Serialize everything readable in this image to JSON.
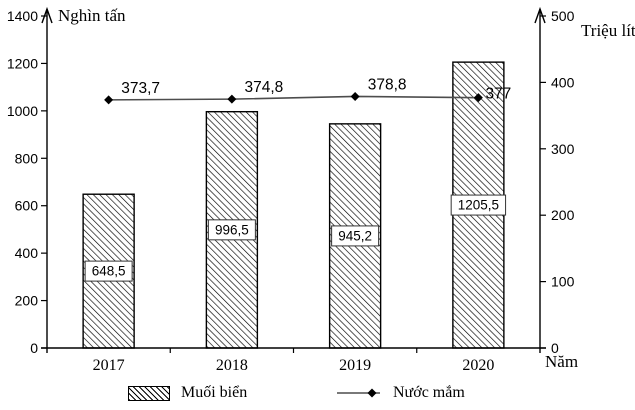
{
  "chart_data": {
    "type": "bar-line-combo",
    "categories": [
      "2017",
      "2018",
      "2019",
      "2020"
    ],
    "series": [
      {
        "name": "Muối biển",
        "type": "bar",
        "axis": "left",
        "values": [
          648.5,
          996.5,
          945.2,
          1205.5
        ],
        "labels": [
          "648,5",
          "996,5",
          "945,2",
          "1205,5"
        ]
      },
      {
        "name": "Nước mắm",
        "type": "line",
        "axis": "right",
        "values": [
          373.7,
          374.8,
          378.8,
          377
        ],
        "labels": [
          "373,7",
          "374,8",
          "378,8",
          "377"
        ]
      }
    ],
    "left_axis": {
      "title": "Nghìn tấn",
      "min": 0,
      "max": 1400,
      "step": 200,
      "ticks": [
        "0",
        "200",
        "400",
        "600",
        "800",
        "1000",
        "1200",
        "1400"
      ]
    },
    "right_axis": {
      "title": "Triệu lít",
      "min": 0,
      "max": 500,
      "step": 100,
      "ticks": [
        "0",
        "100",
        "200",
        "300",
        "400",
        "500"
      ]
    },
    "x_axis": {
      "title": "Năm"
    },
    "legend": {
      "position": "bottom",
      "entries": [
        "Muối biển",
        "Nước mắm"
      ]
    },
    "grid": false,
    "colors": {
      "ink": "#000000",
      "line_series": "#4d4d4d",
      "bar_fill": "#ffffff"
    }
  }
}
